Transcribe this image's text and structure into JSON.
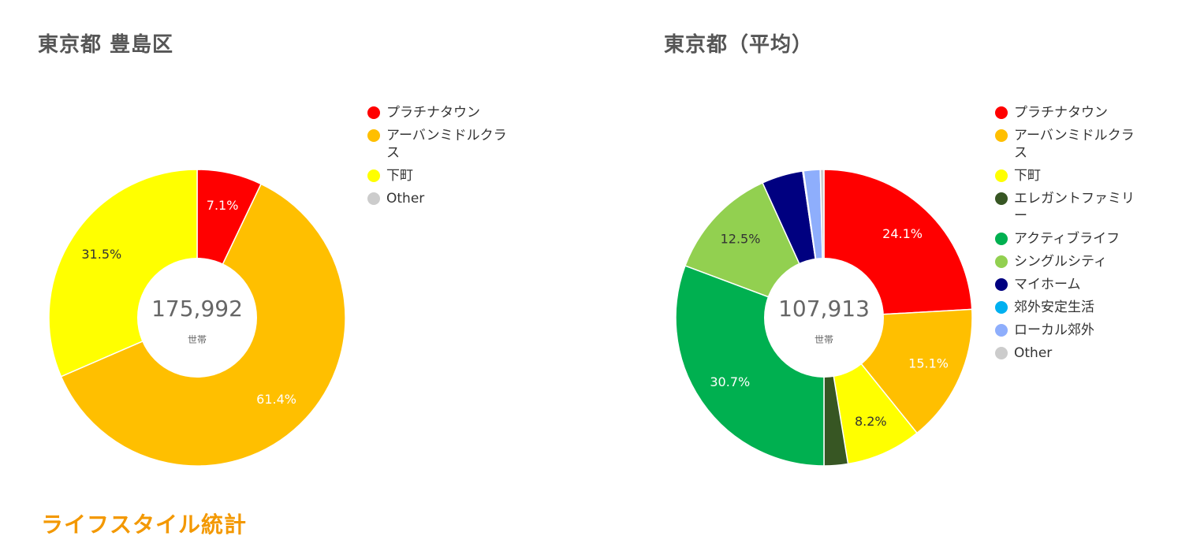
{
  "section_heading": "ライフスタイル統計",
  "center_unit": "世帯",
  "chart_data": [
    {
      "type": "pie",
      "title": "東京都 豊島区",
      "center_value": "175,992",
      "series": [
        {
          "name": "プラチナタウン",
          "value": 7.1,
          "label": "7.1%",
          "color": "#ff0000",
          "label_color": "#ffffff"
        },
        {
          "name": "アーバンミドルクラス",
          "value": 61.4,
          "label": "61.4%",
          "color": "#ffbf00",
          "label_color": "#ffffff"
        },
        {
          "name": "下町",
          "value": 31.5,
          "label": "31.5%",
          "color": "#ffff00",
          "label_color": "#333333"
        }
      ],
      "legend": [
        {
          "label": "プラチナタウン",
          "color": "#ff0000"
        },
        {
          "label": "アーバンミドルクラス",
          "color": "#ffbf00"
        },
        {
          "label": "下町",
          "color": "#ffff00"
        },
        {
          "label": "Other",
          "color": "#cccccc"
        }
      ],
      "legend_position": "right"
    },
    {
      "type": "pie",
      "title": "東京都（平均）",
      "center_value": "107,913",
      "series": [
        {
          "name": "プラチナタウン",
          "value": 24.1,
          "label": "24.1%",
          "color": "#ff0000",
          "label_color": "#ffffff"
        },
        {
          "name": "アーバンミドルクラス",
          "value": 15.1,
          "label": "15.1%",
          "color": "#ffbf00",
          "label_color": "#ffffff"
        },
        {
          "name": "下町",
          "value": 8.2,
          "label": "8.2%",
          "color": "#ffff00",
          "label_color": "#333333"
        },
        {
          "name": "エレガントファミリー",
          "value": 2.6,
          "label": "",
          "color": "#375623",
          "label_color": "#ffffff"
        },
        {
          "name": "アクティブライフ",
          "value": 30.7,
          "label": "30.7%",
          "color": "#00b050",
          "label_color": "#ffffff"
        },
        {
          "name": "シングルシティ",
          "value": 12.5,
          "label": "12.5%",
          "color": "#92d050",
          "label_color": "#333333"
        },
        {
          "name": "マイホーム",
          "value": 4.5,
          "label": "",
          "color": "#000080",
          "label_color": "#ffffff"
        },
        {
          "name": "郊外安定生活",
          "value": 0.1,
          "label": "",
          "color": "#00b0f0",
          "label_color": "#ffffff"
        },
        {
          "name": "ローカル郊外",
          "value": 1.8,
          "label": "",
          "color": "#8eaefc",
          "label_color": "#ffffff"
        },
        {
          "name": "Other",
          "value": 0.4,
          "label": "",
          "color": "#cccccc",
          "label_color": "#ffffff"
        }
      ],
      "legend": [
        {
          "label": "プラチナタウン",
          "color": "#ff0000"
        },
        {
          "label": "アーバンミドルクラス",
          "color": "#ffbf00"
        },
        {
          "label": "下町",
          "color": "#ffff00"
        },
        {
          "label": "エレガントファミリー",
          "color": "#375623"
        },
        {
          "label": "アクティブライフ",
          "color": "#00b050"
        },
        {
          "label": "シングルシティ",
          "color": "#92d050"
        },
        {
          "label": "マイホーム",
          "color": "#000080"
        },
        {
          "label": "郊外安定生活",
          "color": "#00b0f0"
        },
        {
          "label": "ローカル郊外",
          "color": "#8eaefc"
        },
        {
          "label": "Other",
          "color": "#cccccc"
        }
      ],
      "legend_position": "right"
    }
  ]
}
